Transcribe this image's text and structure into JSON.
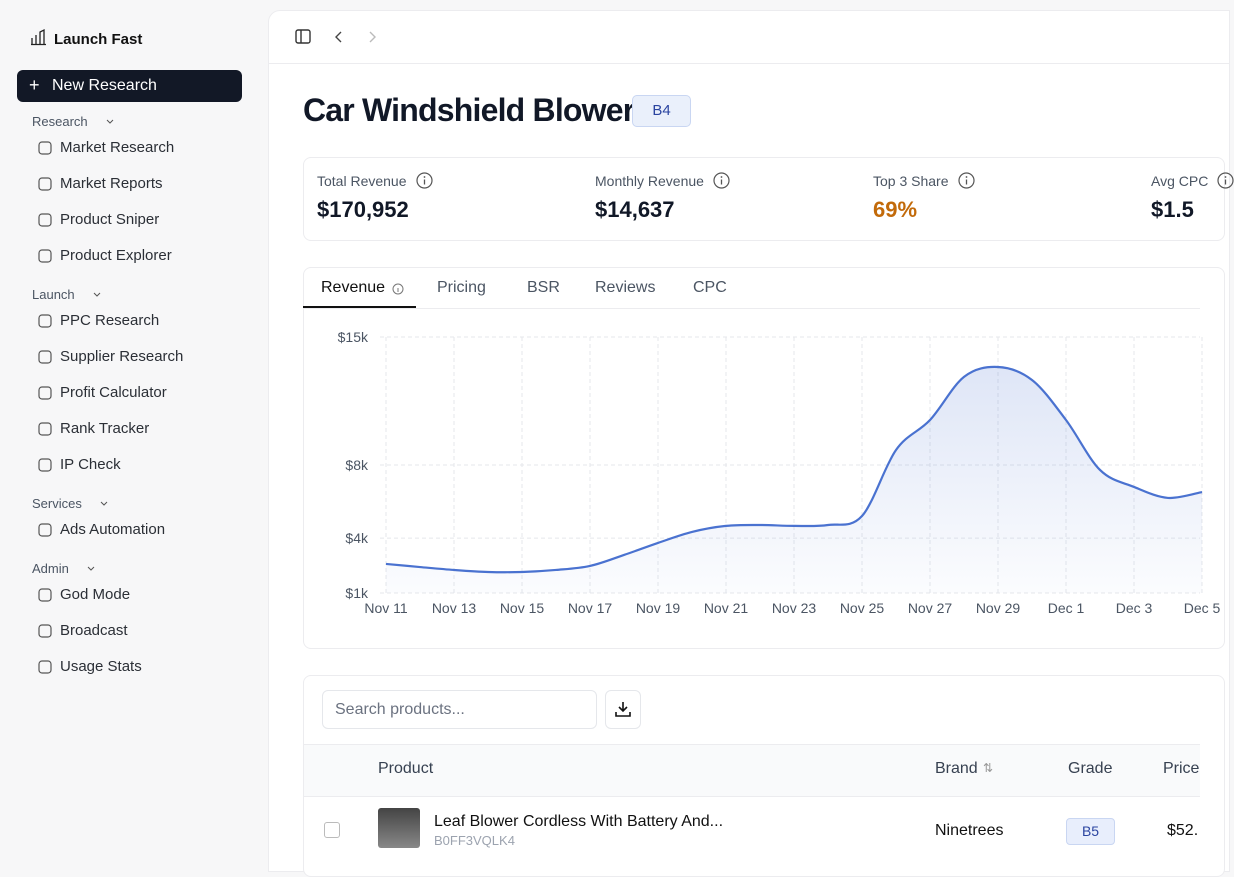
{
  "sidebar": {
    "brand": "Launch Fast",
    "new_button": "New Research",
    "sections": [
      {
        "title": "Research",
        "items": [
          "Market Research",
          "Market Reports",
          "Product Sniper",
          "Product Explorer"
        ]
      },
      {
        "title": "Launch",
        "items": [
          "PPC Research",
          "Supplier Research",
          "Profit Calculator",
          "Rank Tracker",
          "IP Check"
        ]
      },
      {
        "title": "Services",
        "items": [
          "Ads Automation"
        ]
      },
      {
        "title": "Admin",
        "items": [
          "God Mode",
          "Broadcast",
          "Usage Stats"
        ]
      }
    ]
  },
  "header": {
    "title": "Car Windshield Blower",
    "badge": "B4"
  },
  "stats": [
    {
      "label": "Total Revenue",
      "value": "$170,952"
    },
    {
      "label": "Monthly Revenue",
      "value": "$14,637"
    },
    {
      "label": "Top 3 Share",
      "value": "69%"
    },
    {
      "label": "Avg CPC",
      "value": "$1.5"
    }
  ],
  "tabs": [
    "Revenue",
    "Pricing",
    "BSR",
    "Reviews",
    "CPC"
  ],
  "chart_data": {
    "type": "area",
    "color": "#4a72d0",
    "grid": true,
    "categories": [
      "Nov 11",
      null,
      "Nov 13",
      null,
      "Nov 15",
      null,
      "Nov 17",
      null,
      "Nov 19",
      null,
      "Nov 21",
      null,
      "Nov 23",
      null,
      "Nov 25",
      null,
      "Nov 27",
      null,
      "Nov 29",
      null,
      "Dec 1",
      null,
      "Dec 3",
      null,
      "Dec 5"
    ],
    "values": [
      2590,
      2420,
      2260,
      2150,
      2150,
      2260,
      2480,
      3080,
      3740,
      4340,
      4670,
      4720,
      4670,
      4720,
      5210,
      8820,
      10460,
      12820,
      13360,
      12650,
      10460,
      7730,
      6800,
      6200,
      6520
    ],
    "ylim": [
      1000,
      15000
    ],
    "yticks": [
      {
        "value": 15000,
        "label": "$15k"
      },
      {
        "value": 8000,
        "label": "$8k"
      },
      {
        "value": 4000,
        "label": "$4k"
      },
      {
        "value": 1000,
        "label": "$1k"
      }
    ]
  },
  "table": {
    "search_placeholder": "Search products...",
    "columns": [
      "Product",
      "Brand",
      "Grade",
      "Price"
    ],
    "rows": [
      {
        "product": "Leaf Blower Cordless With Battery And...",
        "asin": "B0FF3VQLK4",
        "brand": "Ninetrees",
        "grade": "B5",
        "price": "$52."
      }
    ]
  }
}
